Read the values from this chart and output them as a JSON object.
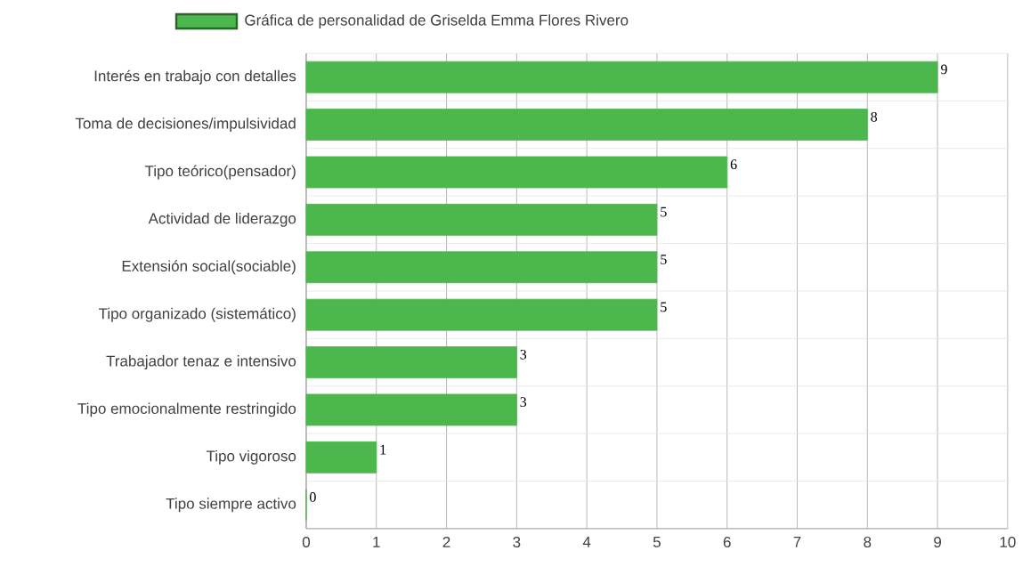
{
  "chart_data": {
    "type": "bar",
    "orientation": "horizontal",
    "categories": [
      "Interés en trabajo con detalles",
      "Toma de decisiones/impulsividad",
      "Tipo teórico(pensador)",
      "Actividad de liderazgo",
      "Extensión social(sociable)",
      "Tipo organizado (sistemático)",
      "Trabajador tenaz e intensivo",
      "Tipo emocionalmente restringido",
      "Tipo vigoroso",
      "Tipo siempre activo"
    ],
    "series": [
      {
        "name": "Gráfica de personalidad de Griselda Emma Flores Rivero",
        "color": "#4cb74c",
        "values": [
          9,
          8,
          6,
          5,
          5,
          5,
          3,
          3,
          1,
          0
        ]
      }
    ],
    "xlim": [
      0,
      10
    ],
    "xticks": [
      0,
      1,
      2,
      3,
      4,
      5,
      6,
      7,
      8,
      9,
      10
    ],
    "grid": true,
    "legend": "top",
    "data_labels": true
  }
}
